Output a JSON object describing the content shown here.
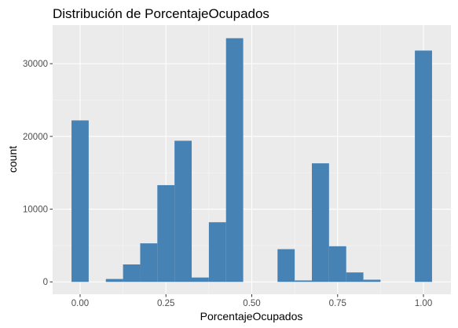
{
  "chart_data": {
    "type": "bar",
    "title": "Distribución de PorcentajeOcupados",
    "xlabel": "PorcentajeOcupados",
    "ylabel": "count",
    "xlim": [
      -0.08,
      1.08
    ],
    "ylim": [
      -1700,
      35300
    ],
    "x_ticks": [
      0.0,
      0.25,
      0.5,
      0.75,
      1.0
    ],
    "x_tick_labels": [
      "0.00",
      "0.25",
      "0.50",
      "0.75",
      "1.00"
    ],
    "y_ticks": [
      0,
      10000,
      20000,
      30000
    ],
    "y_tick_labels": [
      "0",
      "10000",
      "20000",
      "30000"
    ],
    "bin_width": 0.05,
    "bins": [
      {
        "x": 0.0,
        "count": 22200
      },
      {
        "x": 0.05,
        "count": 0
      },
      {
        "x": 0.1,
        "count": 400
      },
      {
        "x": 0.15,
        "count": 2400
      },
      {
        "x": 0.2,
        "count": 5300
      },
      {
        "x": 0.25,
        "count": 13300
      },
      {
        "x": 0.3,
        "count": 19400
      },
      {
        "x": 0.35,
        "count": 600
      },
      {
        "x": 0.4,
        "count": 8200
      },
      {
        "x": 0.45,
        "count": 33500
      },
      {
        "x": 0.5,
        "count": 0
      },
      {
        "x": 0.55,
        "count": 0
      },
      {
        "x": 0.6,
        "count": 4500
      },
      {
        "x": 0.65,
        "count": 200
      },
      {
        "x": 0.7,
        "count": 16300
      },
      {
        "x": 0.75,
        "count": 4900
      },
      {
        "x": 0.8,
        "count": 1300
      },
      {
        "x": 0.85,
        "count": 300
      },
      {
        "x": 0.9,
        "count": 0
      },
      {
        "x": 0.95,
        "count": 0
      },
      {
        "x": 1.0,
        "count": 31800
      }
    ],
    "grid": true,
    "legend": "none",
    "colors": {
      "bar_fill": "#4682b4",
      "panel_background": "#ebebeb",
      "grid_major": "#ffffff",
      "grid_minor": "#f5f5f5"
    }
  }
}
